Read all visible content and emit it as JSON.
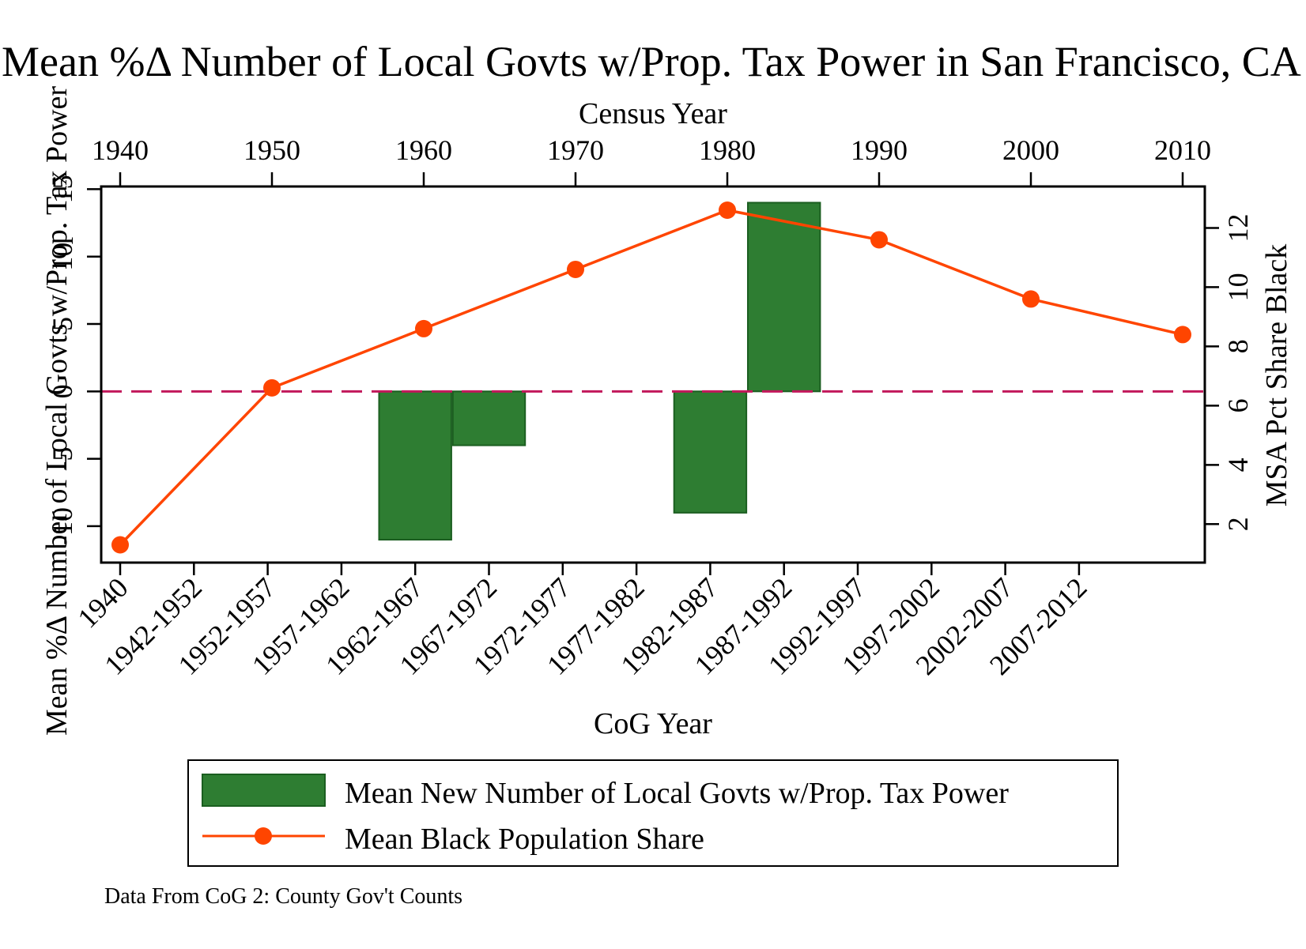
{
  "chart_data": {
    "type": "bar+line",
    "title": "Mean %Δ Number of Local Govts w/Prop. Tax Power in San Francisco, CA PMSA",
    "top_axis": {
      "label": "Census Year",
      "ticks": [
        "1940",
        "1950",
        "1960",
        "1970",
        "1980",
        "1990",
        "2000",
        "2010"
      ]
    },
    "bottom_axis": {
      "label": "CoG Year",
      "categories": [
        "1940",
        "1942-1952",
        "1952-1957",
        "1957-1962",
        "1962-1967",
        "1967-1972",
        "1972-1977",
        "1977-1982",
        "1982-1987",
        "1987-1992",
        "1992-1997",
        "1997-2002",
        "2002-2007",
        "2007-2012"
      ]
    },
    "left_axis": {
      "label": "Mean %Δ Number of Local Govts w/Prop. Tax Power",
      "ticks": [
        "-10",
        "-5",
        "0",
        "5",
        "10",
        "15"
      ],
      "ylim": [
        -12.7,
        15.2
      ]
    },
    "right_axis": {
      "label": "MSA Pct Share Black",
      "ticks": [
        "2",
        "4",
        "6",
        "8",
        "10",
        "12"
      ],
      "ylim": [
        0.7,
        13.4
      ]
    },
    "series": [
      {
        "name": "Mean New Number of Local Govts w/Prop. Tax Power",
        "type": "bar",
        "axis": "left",
        "color": "#2e7d32",
        "values": [
          {
            "category": "1962-1967",
            "value": -11.0
          },
          {
            "category": "1967-1972",
            "value": -4.0
          },
          {
            "category": "1982-1987",
            "value": -9.0
          },
          {
            "category": "1987-1992",
            "value": 14.0
          }
        ]
      },
      {
        "name": "Mean Black Population Share",
        "type": "line",
        "axis": "right",
        "color": "#ff4500",
        "x": [
          1940,
          1950,
          1960,
          1970,
          1980,
          1990,
          2000,
          2010
        ],
        "values": [
          1.3,
          6.6,
          8.6,
          10.6,
          12.6,
          11.6,
          9.6,
          8.4
        ]
      }
    ],
    "reference_line": {
      "axis": "left",
      "value": 0,
      "color": "#c2185b",
      "style": "dashed"
    },
    "legend": {
      "position": "bottom"
    },
    "note": "Data From CoG 2: County Gov't Counts"
  }
}
